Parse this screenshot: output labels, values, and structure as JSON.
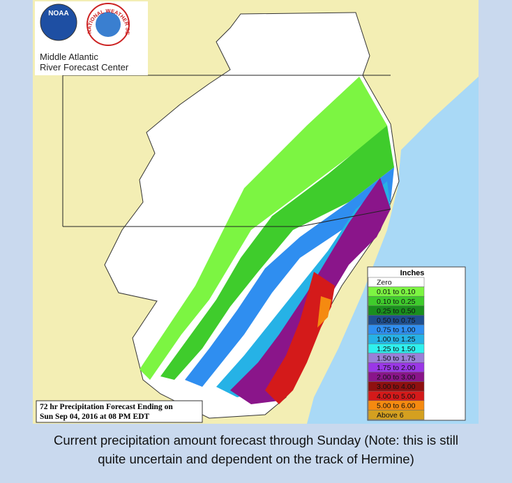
{
  "header": {
    "noaa": "NOAA",
    "nws": "NATIONAL WEATHER SERVICE",
    "center": [
      "Middle Atlantic",
      "River Forecast Center"
    ]
  },
  "legend": {
    "title": "Inches",
    "entries": [
      {
        "label": "Zero",
        "color": "#ffffff"
      },
      {
        "label": "0.01 to 0.10",
        "color": "#7cf542"
      },
      {
        "label": "0.10 to 0.25",
        "color": "#3fcc2c"
      },
      {
        "label": "0.25 to 0.50",
        "color": "#1a8f1e"
      },
      {
        "label": "0.50 to 0.75",
        "color": "#1f4f8f"
      },
      {
        "label": "0.75 to 1.00",
        "color": "#2f8ef0"
      },
      {
        "label": "1.00 to 1.25",
        "color": "#26b2e6"
      },
      {
        "label": "1.25 to 1.50",
        "color": "#2ef0ee"
      },
      {
        "label": "1.50 to 1.75",
        "color": "#9a7fd8"
      },
      {
        "label": "1.75 to 2.00",
        "color": "#9a37e6"
      },
      {
        "label": "2.00 to 3.00",
        "color": "#8a158a"
      },
      {
        "label": "3.00 to 4.00",
        "color": "#8f1010"
      },
      {
        "label": "4.00 to 5.00",
        "color": "#d41a1a"
      },
      {
        "label": "5.00 to 6.00",
        "color": "#f58a10"
      },
      {
        "label": "Above 6",
        "color": "#d4a020"
      }
    ]
  },
  "footer": [
    "72 hr Precipitation Forecast Ending on",
    "Sun Sep 04, 2016 at 08 PM EDT"
  ],
  "caption": [
    "Current precipitation amount forecast through Sunday (Note: this is still",
    "quite uncertain and dependent on the track of Hermine)"
  ]
}
